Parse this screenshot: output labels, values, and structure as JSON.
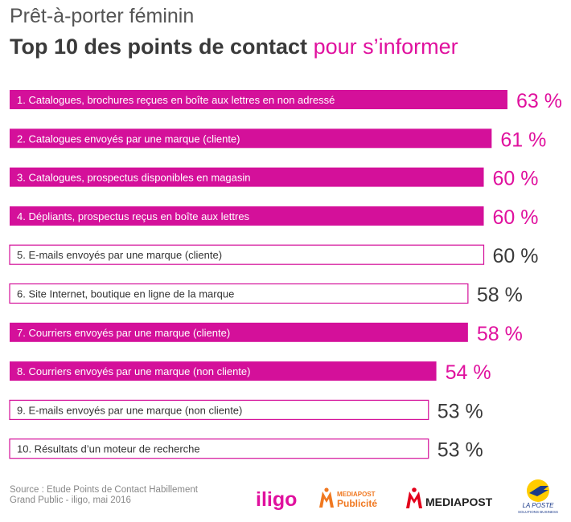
{
  "header": {
    "subtitle": "Prêt-à-porter féminin",
    "title_main": "Top 10 des points de contact",
    "title_accent": "pour s’informer"
  },
  "colors": {
    "accent": "#e0119e",
    "filled_bar": "#d4109a",
    "outline_bar": "#d4109a",
    "value_dark": "#3a3a3a",
    "text_dark": "#333333"
  },
  "chart_data": {
    "type": "bar",
    "orientation": "horizontal",
    "categories": [
      "1. Catalogues, brochures reçues en boîte aux lettres en non adressé",
      "2. Catalogues envoyés par une marque (cliente)",
      "3. Catalogues, prospectus disponibles en magasin",
      "4. Dépliants, prospectus reçus en boîte aux lettres",
      "5. E-mails envoyés par une marque (cliente)",
      "6. Site Internet, boutique en ligne de la marque",
      "7. Courriers envoyés par une marque (cliente)",
      "8. Courriers envoyés par une marque (non cliente)",
      "9. E-mails envoyés par une marque (non cliente)",
      "10. Résultats d’un moteur de recherche"
    ],
    "values": [
      63,
      61,
      60,
      60,
      60,
      58,
      58,
      54,
      53,
      53
    ],
    "value_labels": [
      "63 %",
      "61 %",
      "60 %",
      "60 %",
      "60 %",
      "58 %",
      "58 %",
      "54 %",
      "53 %",
      "53 %"
    ],
    "filled": [
      true,
      true,
      true,
      true,
      false,
      false,
      true,
      true,
      false,
      false
    ],
    "unit": "%"
  },
  "footer": {
    "source_line1": "Source : Etude Points de Contact Habillement",
    "source_line2": "Grand Public - iligo, mai 2016",
    "logos": {
      "iligo": "iligo",
      "mediapost_publicite_top": "MEDIAPOST",
      "mediapost_publicite_bottom": "Publicité",
      "mediapost": "MEDIAPOST",
      "laposte_top": "LA POSTE",
      "laposte_bottom": "SOLUTIONS BUSINESS"
    }
  }
}
